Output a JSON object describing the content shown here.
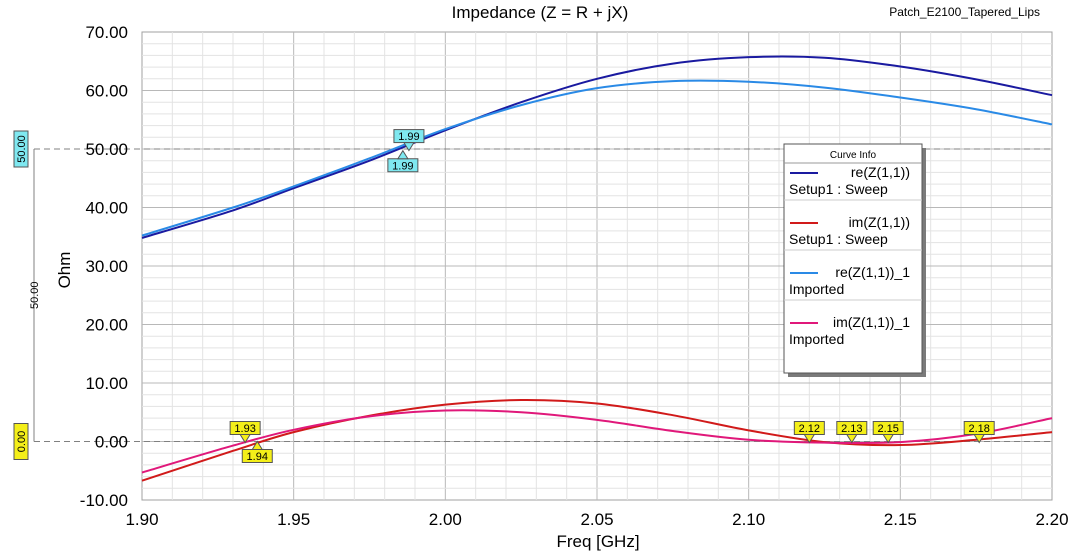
{
  "chart_data": {
    "type": "line",
    "title": "Impedance (Z = R + jX)",
    "project_name": "Patch_E2100_Tapered_Lips",
    "xlabel": "Freq [GHz]",
    "ylabel": "Ohm",
    "xlim": [
      1.9,
      2.2
    ],
    "ylim": [
      -10,
      70
    ],
    "x_ticks": [
      "1.90",
      "1.95",
      "2.00",
      "2.05",
      "2.10",
      "2.15",
      "2.20"
    ],
    "y_ticks": [
      "70.00",
      "60.00",
      "50.00",
      "40.00",
      "30.00",
      "20.00",
      "10.00",
      "0.00",
      "-10.00"
    ],
    "grid": true,
    "legend": {
      "title": "Curve Info",
      "position": "right",
      "entries": [
        {
          "name": "re(Z(1,1))",
          "sub": "Setup1 : Sweep",
          "color": "#1a1aa0"
        },
        {
          "name": "im(Z(1,1))",
          "sub": "Setup1 : Sweep",
          "color": "#d11a1a"
        },
        {
          "name": "re(Z(1,1))_1",
          "sub": "Imported",
          "color": "#2a8ae6"
        },
        {
          "name": "im(Z(1,1))_1",
          "sub": "Imported",
          "color": "#e0187a"
        }
      ]
    },
    "x": [
      1.9,
      1.93,
      1.95,
      1.975,
      2.0,
      2.025,
      2.05,
      2.075,
      2.1,
      2.125,
      2.15,
      2.175,
      2.2
    ],
    "series": [
      {
        "name": "re(Z(1,1))",
        "color": "#1a1aa0",
        "values": [
          34.8,
          39.5,
          43.3,
          48.0,
          53.2,
          58.0,
          62.0,
          64.6,
          65.7,
          65.6,
          64.1,
          61.9,
          59.2
        ]
      },
      {
        "name": "im(Z(1,1))",
        "color": "#d11a1a",
        "values": [
          -6.7,
          -1.6,
          1.6,
          4.4,
          6.3,
          7.1,
          6.5,
          4.5,
          1.9,
          -0.1,
          -0.6,
          0.3,
          1.6
        ]
      },
      {
        "name": "re(Z(1,1))_1",
        "color": "#2a8ae6",
        "values": [
          35.2,
          40.0,
          43.6,
          48.4,
          53.4,
          57.5,
          60.4,
          61.6,
          61.5,
          60.5,
          58.8,
          56.8,
          54.2
        ]
      },
      {
        "name": "im(Z(1,1))_1",
        "color": "#e0187a",
        "values": [
          -5.3,
          -0.7,
          2.0,
          4.3,
          5.3,
          5.0,
          3.7,
          1.8,
          0.3,
          -0.2,
          -0.1,
          1.3,
          4.0
        ]
      }
    ],
    "ref_lines": [
      {
        "y": 50,
        "label": "50.00"
      },
      {
        "y": 0,
        "label": "0.00"
      }
    ],
    "span_label": "50.00",
    "markers": [
      {
        "label": "1.99",
        "x": 1.988,
        "y": 49.9,
        "color": "#7fe8f0",
        "label_side": "above"
      },
      {
        "label": "1.99",
        "x": 1.986,
        "y": 49.7,
        "color": "#7fe8f0",
        "label_side": "below"
      },
      {
        "label": "1.93",
        "x": 1.934,
        "y": 0.0,
        "color": "#f4ef19",
        "label_side": "above"
      },
      {
        "label": "1.94",
        "x": 1.938,
        "y": 0.0,
        "color": "#f4ef19",
        "label_side": "below"
      },
      {
        "label": "2.12",
        "x": 2.12,
        "y": 0.0,
        "color": "#f4ef19",
        "label_side": "above"
      },
      {
        "label": "2.13",
        "x": 2.134,
        "y": 0.0,
        "color": "#f4ef19",
        "label_side": "above"
      },
      {
        "label": "2.15",
        "x": 2.146,
        "y": 0.0,
        "color": "#f4ef19",
        "label_side": "above"
      },
      {
        "label": "2.18",
        "x": 2.176,
        "y": 0.0,
        "color": "#f4ef19",
        "label_side": "above"
      }
    ]
  }
}
